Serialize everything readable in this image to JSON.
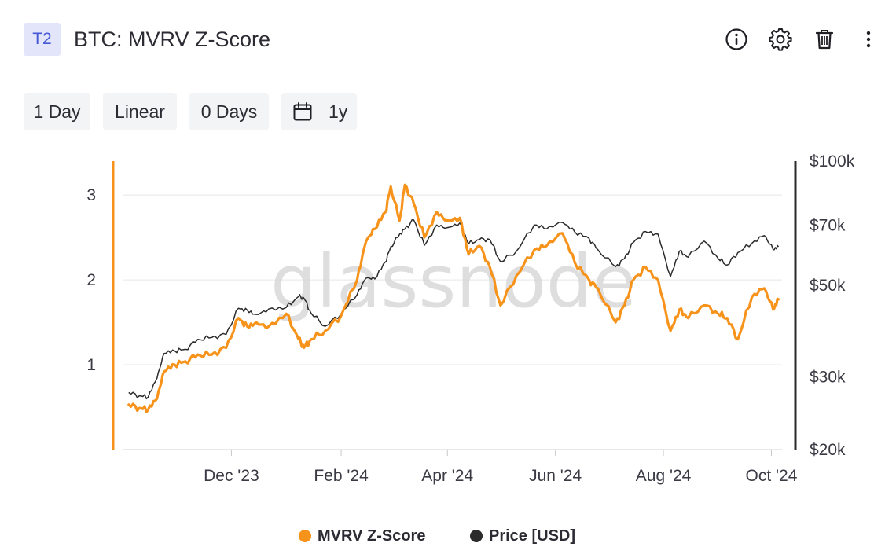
{
  "header": {
    "badge": "T2",
    "title": "BTC: MVRV Z-Score",
    "icons": [
      "info-icon",
      "gear-icon",
      "trash-icon",
      "more-vertical-icon"
    ]
  },
  "toolbar": {
    "resolution": "1 Day",
    "scale": "Linear",
    "moving_average": "0 Days",
    "range": "1y",
    "range_icon": "calendar-icon"
  },
  "watermark": "glassnode",
  "colors": {
    "mvrv": "#f7931a",
    "price": "#2b2b2b",
    "grid": "#e8e8e8",
    "badge_bg": "#e3e6fb",
    "badge_text": "#4557d4"
  },
  "chart_data": {
    "type": "line",
    "title": "BTC: MVRV Z-Score",
    "x_ticks": [
      "Dec '23",
      "Feb '24",
      "Apr '24",
      "Jun '24",
      "Aug '24",
      "Oct '24"
    ],
    "y_left": {
      "ticks": [
        "1",
        "2",
        "3"
      ],
      "range": [
        0,
        3.4
      ]
    },
    "y_right": {
      "ticks": [
        "$20k",
        "$30k",
        "$50k",
        "$70k",
        "$100k"
      ],
      "range": [
        20000,
        100000
      ],
      "scale": "log"
    },
    "grid": true,
    "legend_position": "bottom-center",
    "series": [
      {
        "name": "MVRV Z-Score",
        "axis": "left",
        "color": "#f7931a",
        "x": [
          "2023-10-04",
          "2023-10-10",
          "2023-10-15",
          "2023-10-20",
          "2023-10-24",
          "2023-10-30",
          "2023-11-05",
          "2023-11-12",
          "2023-11-20",
          "2023-11-28",
          "2023-12-05",
          "2023-12-10",
          "2023-12-15",
          "2023-12-22",
          "2024-01-01",
          "2024-01-08",
          "2024-01-11",
          "2024-01-15",
          "2024-01-23",
          "2024-02-01",
          "2024-02-10",
          "2024-02-15",
          "2024-02-20",
          "2024-02-26",
          "2024-02-29",
          "2024-03-05",
          "2024-03-08",
          "2024-03-13",
          "2024-03-19",
          "2024-03-26",
          "2024-04-01",
          "2024-04-08",
          "2024-04-13",
          "2024-04-19",
          "2024-04-25",
          "2024-05-01",
          "2024-05-10",
          "2024-05-20",
          "2024-05-27",
          "2024-06-05",
          "2024-06-12",
          "2024-06-20",
          "2024-06-25",
          "2024-07-05",
          "2024-07-10",
          "2024-07-15",
          "2024-07-22",
          "2024-07-29",
          "2024-08-05",
          "2024-08-10",
          "2024-08-15",
          "2024-08-24",
          "2024-09-01",
          "2024-09-06",
          "2024-09-12",
          "2024-09-20",
          "2024-09-27",
          "2024-10-02",
          "2024-10-05"
        ],
        "values": [
          0.53,
          0.49,
          0.47,
          0.6,
          0.92,
          1.0,
          1.04,
          1.12,
          1.12,
          1.2,
          1.55,
          1.45,
          1.5,
          1.45,
          1.6,
          1.3,
          1.2,
          1.3,
          1.4,
          1.58,
          2.0,
          2.45,
          2.6,
          2.8,
          3.1,
          2.7,
          3.12,
          2.9,
          2.5,
          2.8,
          2.7,
          2.73,
          2.3,
          2.4,
          2.15,
          1.7,
          2.05,
          2.35,
          2.4,
          2.55,
          2.2,
          2.0,
          1.9,
          1.5,
          1.7,
          2.0,
          2.15,
          2.0,
          1.4,
          1.65,
          1.55,
          1.7,
          1.6,
          1.55,
          1.3,
          1.8,
          1.9,
          1.65,
          1.77
        ]
      },
      {
        "name": "Price [USD]",
        "axis": "right",
        "color": "#2b2b2b",
        "x": [
          "2023-10-04",
          "2023-10-10",
          "2023-10-15",
          "2023-10-20",
          "2023-10-24",
          "2023-10-30",
          "2023-11-05",
          "2023-11-12",
          "2023-11-20",
          "2023-11-28",
          "2023-12-05",
          "2023-12-10",
          "2023-12-15",
          "2023-12-22",
          "2024-01-01",
          "2024-01-08",
          "2024-01-11",
          "2024-01-15",
          "2024-01-23",
          "2024-02-01",
          "2024-02-10",
          "2024-02-15",
          "2024-02-20",
          "2024-02-26",
          "2024-02-29",
          "2024-03-05",
          "2024-03-08",
          "2024-03-13",
          "2024-03-19",
          "2024-03-26",
          "2024-04-01",
          "2024-04-08",
          "2024-04-13",
          "2024-04-19",
          "2024-04-25",
          "2024-05-01",
          "2024-05-10",
          "2024-05-20",
          "2024-05-27",
          "2024-06-05",
          "2024-06-12",
          "2024-06-20",
          "2024-06-25",
          "2024-07-05",
          "2024-07-10",
          "2024-07-15",
          "2024-07-22",
          "2024-07-29",
          "2024-08-05",
          "2024-08-10",
          "2024-08-15",
          "2024-08-24",
          "2024-09-01",
          "2024-09-06",
          "2024-09-12",
          "2024-09-20",
          "2024-09-27",
          "2024-10-02",
          "2024-10-05"
        ],
        "values": [
          27500,
          27000,
          26800,
          29800,
          34200,
          34700,
          35000,
          37000,
          37400,
          38000,
          44000,
          43500,
          42500,
          43800,
          44200,
          47000,
          46500,
          42800,
          39800,
          42700,
          47500,
          52000,
          51800,
          57000,
          62000,
          66500,
          68500,
          72000,
          62500,
          70000,
          69000,
          70800,
          63000,
          64500,
          64500,
          57000,
          60500,
          70000,
          68500,
          71000,
          67300,
          65000,
          61000,
          55500,
          58000,
          63500,
          67500,
          66500,
          52500,
          60500,
          58500,
          64000,
          58000,
          56000,
          60000,
          63200,
          66000,
          61000,
          62000
        ]
      }
    ]
  },
  "legend": [
    {
      "label": "MVRV Z-Score",
      "color": "#f7931a"
    },
    {
      "label": "Price [USD]",
      "color": "#2b2b2b"
    }
  ]
}
